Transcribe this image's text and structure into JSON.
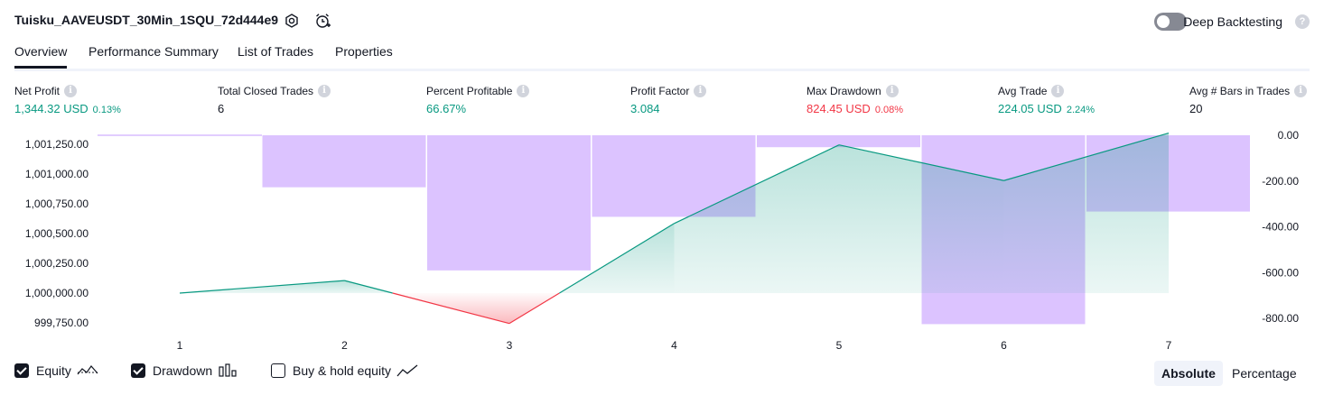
{
  "header": {
    "title": "Tuisku_AAVEUSDT_30Min_1SQU_72d444e9",
    "settings_icon": "gear-icon",
    "alert_icon": "alarm-clock-add-icon",
    "deep_backtesting_label": "Deep Backtesting",
    "deep_backtesting_enabled": false,
    "help_glyph": "?"
  },
  "tabs": [
    {
      "label": "Overview",
      "active": true
    },
    {
      "label": "Performance Summary",
      "active": false
    },
    {
      "label": "List of Trades",
      "active": false
    },
    {
      "label": "Properties",
      "active": false
    }
  ],
  "metrics": [
    {
      "label": "Net Profit",
      "value": "1,344.32 USD",
      "pct": "0.13%",
      "tone": "green"
    },
    {
      "label": "Total Closed Trades",
      "value": "6",
      "pct": "",
      "tone": "dark"
    },
    {
      "label": "Percent Profitable",
      "value": "66.67%",
      "pct": "",
      "tone": "green"
    },
    {
      "label": "Profit Factor",
      "value": "3.084",
      "pct": "",
      "tone": "green"
    },
    {
      "label": "Max Drawdown",
      "value": "824.45 USD",
      "pct": "0.08%",
      "tone": "red"
    },
    {
      "label": "Avg Trade",
      "value": "224.05 USD",
      "pct": "2.24%",
      "tone": "green"
    },
    {
      "label": "Avg # Bars in Trades",
      "value": "20",
      "pct": "",
      "tone": "dark"
    }
  ],
  "info_glyph": "i",
  "chart_data": {
    "type": "line",
    "x": [
      1,
      2,
      3,
      4,
      5,
      6,
      7
    ],
    "series": [
      {
        "name": "Equity",
        "values": [
          1000000,
          1000105,
          999745,
          1000585,
          1001245,
          1000945,
          1001344.32
        ],
        "color": "#089981"
      },
      {
        "name": "Drawdown",
        "type": "bar",
        "values": [
          0,
          -227,
          -590,
          -356,
          -52,
          -824.45,
          -333
        ],
        "color": "#c59bff"
      }
    ],
    "left_ticks": [
      "1,001,250.00",
      "1,001,000.00",
      "1,000,750.00",
      "1,000,500.00",
      "1,000,250.00",
      "1,000,000.00",
      "999,750.00"
    ],
    "left_tick_values": [
      1001250,
      1001000,
      1000750,
      1000500,
      1000250,
      1000000,
      999750
    ],
    "right_ticks": [
      "0.00",
      "-200.00",
      "-400.00",
      "-600.00",
      "-800.00"
    ],
    "right_tick_values": [
      0,
      -200,
      -400,
      -600,
      -800
    ],
    "x_ticks": [
      "1",
      "2",
      "3",
      "4",
      "5",
      "6",
      "7"
    ],
    "baseline": 1000000,
    "positive_color": "#089981",
    "negative_color": "#f23645"
  },
  "legend": [
    {
      "label": "Equity",
      "checked": true,
      "icon": "equity-line-icon"
    },
    {
      "label": "Drawdown",
      "checked": true,
      "icon": "bar-chart-icon"
    },
    {
      "label": "Buy & hold equity",
      "checked": false,
      "icon": "trend-line-icon"
    }
  ],
  "mode": {
    "absolute_label": "Absolute",
    "percentage_label": "Percentage",
    "selected": "Absolute"
  }
}
